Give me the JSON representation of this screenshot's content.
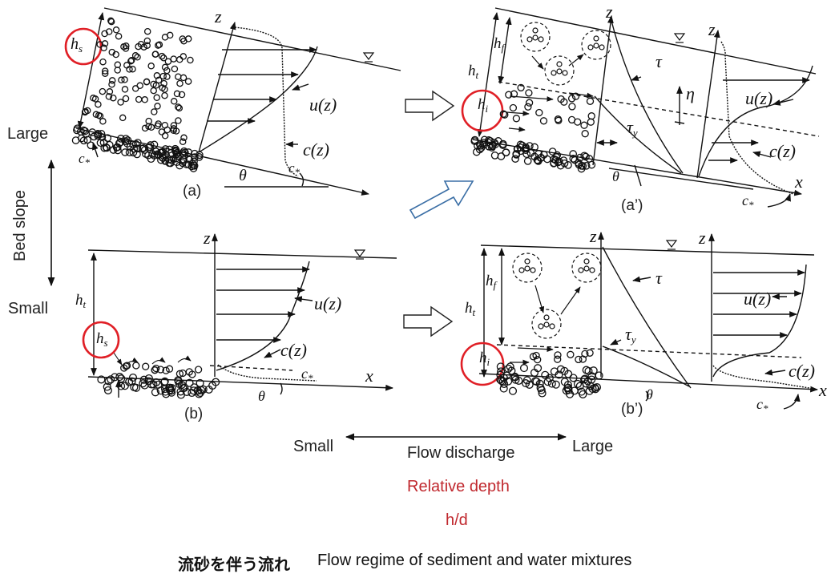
{
  "side": {
    "large": "Large",
    "bed_slope": "Bed slope",
    "small": "Small"
  },
  "panels": {
    "a": "(a)",
    "a_prime": "(a’)",
    "b": "(b)",
    "b_prime": "(b’)"
  },
  "symbols": {
    "z": "z",
    "x": "x",
    "theta": "θ",
    "u_z": "u(z)",
    "c_z": "c(z)",
    "c": "c",
    "star": "*",
    "h": "h",
    "sub_s": "s",
    "sub_t": "t",
    "sub_f": "f",
    "sub_i": "i",
    "tau": "τ",
    "sub_y": "y",
    "eta": "η"
  },
  "bottom": {
    "small": "Small",
    "flow_discharge": "Flow discharge",
    "large": "Large",
    "relative_depth": "Relative depth",
    "h_over_d": "h/d",
    "caption_jp": "流砂を伴う流れ",
    "caption_en": "Flow regime of sediment and water mixtures"
  },
  "colors": {
    "highlight_circle": "#e01f26",
    "relative_depth_text": "#c0282e",
    "arrow_outline": "#3a6ea5",
    "line": "#111111"
  }
}
